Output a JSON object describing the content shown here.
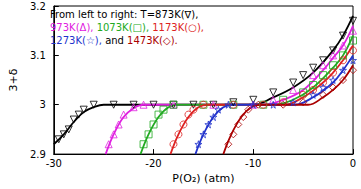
{
  "chart_data": {
    "type": "scatter",
    "x_label": "P(O₂) (atm)",
    "y_label": "3+δ",
    "xlim": [
      -30,
      0
    ],
    "xticks": [
      -30,
      -20,
      -10,
      0
    ],
    "ylim": [
      2.9,
      3.2
    ],
    "yticks": [
      2.9,
      3,
      3.1,
      3.2
    ],
    "grid": false,
    "annotation": [
      [
        {
          "text": "From left to right: T=873K(∇),",
          "color": "#000000"
        }
      ],
      [
        {
          "text": "973K(Δ),",
          "color": "#e020e0"
        },
        {
          "text": "1073K(□),",
          "color": "#22aa22"
        },
        {
          "text": "1173K(○),",
          "color": "#dd2222"
        }
      ],
      [
        {
          "text": "1273K(☆),",
          "color": "#2233cc"
        },
        {
          "text": "and",
          "color": "#000000"
        },
        {
          "text": "1473K(◇).",
          "color": "#aa0000"
        }
      ]
    ],
    "series": [
      {
        "name": "873K",
        "color": "#000000",
        "marker": "triangle_down",
        "line_style": "solid",
        "points": {
          "x": [
            -29.5,
            -29,
            -28.5,
            -28,
            -27.5,
            -27,
            -26,
            -24,
            -22,
            -20,
            -18,
            -16,
            -14,
            -12,
            -10,
            -8,
            -6,
            -5,
            -4,
            -3,
            -2,
            -1,
            0
          ],
          "y": [
            2.93,
            2.94,
            2.95,
            2.97,
            2.98,
            2.99,
            3.0,
            3.0,
            3.0,
            3.0,
            3.0,
            3.0,
            3.0,
            3.005,
            3.01,
            3.025,
            3.045,
            3.06,
            3.075,
            3.09,
            3.11,
            3.14,
            3.17
          ]
        },
        "fit": {
          "x": [
            -30,
            -29,
            -28,
            -27,
            -26,
            -25,
            -10,
            -8,
            -6,
            -4,
            -2,
            -1,
            0
          ],
          "y": [
            2.92,
            2.94,
            2.965,
            2.985,
            2.995,
            3.0,
            3.0,
            3.015,
            3.035,
            3.065,
            3.11,
            3.14,
            3.18
          ]
        }
      },
      {
        "name": "973K",
        "color": "#e020e0",
        "marker": "triangle",
        "line_style": "solid",
        "points": {
          "x": [
            -24.5,
            -24,
            -23.5,
            -23,
            -22,
            -21,
            -18,
            -14,
            -10,
            -8,
            -6,
            -4,
            -3,
            -2,
            -1,
            0
          ],
          "y": [
            2.92,
            2.94,
            2.96,
            2.98,
            2.995,
            3.0,
            3.0,
            3.0,
            3.0,
            3.01,
            3.03,
            3.06,
            3.08,
            3.1,
            3.12,
            3.15
          ]
        },
        "fit": {
          "x": [
            -24.8,
            -24,
            -23,
            -22,
            -21,
            -9,
            -7,
            -5,
            -3,
            -2,
            -1,
            0
          ],
          "y": [
            2.9,
            2.94,
            2.975,
            2.993,
            3.0,
            3.0,
            3.01,
            3.03,
            3.07,
            3.095,
            3.12,
            3.16
          ]
        }
      },
      {
        "name": "1073K",
        "color": "#22aa22",
        "marker": "square",
        "line_style": "solid",
        "points": {
          "x": [
            -21,
            -20.5,
            -20,
            -19.5,
            -19,
            -18,
            -15,
            -12,
            -9,
            -7,
            -5,
            -4,
            -3,
            -2,
            -1,
            0
          ],
          "y": [
            2.92,
            2.94,
            2.96,
            2.98,
            2.99,
            3.0,
            3.0,
            3.0,
            3.0,
            3.01,
            3.025,
            3.04,
            3.06,
            3.08,
            3.1,
            3.13
          ]
        },
        "fit": {
          "x": [
            -21.3,
            -20.5,
            -19.5,
            -18.5,
            -17.5,
            -8,
            -6,
            -4,
            -2,
            -1,
            0
          ],
          "y": [
            2.9,
            2.94,
            2.975,
            2.995,
            3.0,
            3.0,
            3.01,
            3.035,
            3.075,
            3.1,
            3.14
          ]
        }
      },
      {
        "name": "1173K",
        "color": "#dd2222",
        "marker": "circle",
        "line_style": "solid",
        "points": {
          "x": [
            -18,
            -17.5,
            -17,
            -16.5,
            -16,
            -15,
            -12,
            -9,
            -7,
            -5,
            -4,
            -3,
            -2,
            -1,
            0
          ],
          "y": [
            2.92,
            2.94,
            2.96,
            2.98,
            2.99,
            3.0,
            3.0,
            3.0,
            3.005,
            3.02,
            3.03,
            3.045,
            3.065,
            3.09,
            3.11
          ]
        },
        "fit": {
          "x": [
            -18.3,
            -17.5,
            -16.5,
            -15.5,
            -14.5,
            -7,
            -5,
            -3,
            -2,
            -1,
            0
          ],
          "y": [
            2.9,
            2.94,
            2.975,
            2.995,
            3.0,
            3.0,
            3.015,
            3.045,
            3.065,
            3.09,
            3.12
          ]
        }
      },
      {
        "name": "1273K",
        "color": "#2233cc",
        "marker": "star",
        "line_style": "solid",
        "points": {
          "x": [
            -15.5,
            -15,
            -14.5,
            -14,
            -13.5,
            -12.5,
            -10,
            -8,
            -6,
            -4,
            -3,
            -2,
            -1,
            0
          ],
          "y": [
            2.92,
            2.94,
            2.96,
            2.975,
            2.99,
            3.0,
            3.0,
            3.0,
            3.005,
            3.02,
            3.035,
            3.05,
            3.07,
            3.09
          ]
        },
        "fit": {
          "x": [
            -15.8,
            -15,
            -14,
            -13,
            -12,
            -6,
            -4,
            -2,
            -1,
            0
          ],
          "y": [
            2.9,
            2.94,
            2.975,
            2.995,
            3.0,
            3.0,
            3.015,
            3.045,
            3.07,
            3.1
          ]
        }
      },
      {
        "name": "1473K",
        "color": "#aa0000",
        "marker": "diamond",
        "line_style": "solid",
        "points": {
          "x": [
            -12.5,
            -12,
            -11.5,
            -11,
            -10.5,
            -9.5,
            -7,
            -5,
            -3,
            -2,
            -1,
            0
          ],
          "y": [
            2.92,
            2.94,
            2.96,
            2.975,
            2.99,
            3.0,
            3.0,
            3.005,
            3.02,
            3.035,
            3.05,
            3.07
          ]
        },
        "fit": {
          "x": [
            -13,
            -12.2,
            -11.2,
            -10.2,
            -9.2,
            -4.5,
            -3,
            -2,
            -1,
            0
          ],
          "y": [
            2.9,
            2.94,
            2.975,
            2.995,
            3.0,
            3.0,
            3.015,
            3.03,
            3.05,
            3.08
          ]
        }
      }
    ]
  }
}
